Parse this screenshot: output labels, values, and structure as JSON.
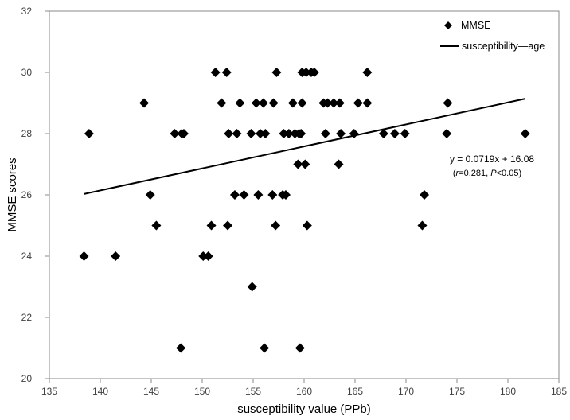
{
  "chart_data": {
    "type": "scatter",
    "title": "",
    "xlabel": "susceptibility value (PPb)",
    "ylabel": "MMSE scores",
    "xlim": [
      135,
      185
    ],
    "ylim": [
      20,
      32
    ],
    "xticks": [
      135,
      140,
      145,
      150,
      155,
      160,
      165,
      170,
      175,
      180,
      185
    ],
    "yticks": [
      20,
      22,
      24,
      26,
      28,
      30,
      32
    ],
    "grid": false,
    "legend_position": "top-right",
    "series": [
      {
        "name": "MMSE",
        "marker": "diamond",
        "color": "#000000",
        "points": [
          [
            138.4,
            24
          ],
          [
            138.9,
            28
          ],
          [
            141.5,
            24
          ],
          [
            144.3,
            29
          ],
          [
            144.9,
            26
          ],
          [
            145.5,
            25
          ],
          [
            147.3,
            28
          ],
          [
            147.9,
            21
          ],
          [
            148.0,
            28
          ],
          [
            148.2,
            28
          ],
          [
            150.1,
            24
          ],
          [
            150.6,
            24
          ],
          [
            150.9,
            25
          ],
          [
            151.3,
            30
          ],
          [
            151.9,
            29
          ],
          [
            152.4,
            30
          ],
          [
            152.5,
            25
          ],
          [
            152.6,
            28
          ],
          [
            153.2,
            26
          ],
          [
            153.4,
            28
          ],
          [
            153.7,
            29
          ],
          [
            154.1,
            26
          ],
          [
            154.8,
            28
          ],
          [
            154.9,
            23
          ],
          [
            155.3,
            29
          ],
          [
            155.5,
            26
          ],
          [
            155.7,
            28
          ],
          [
            156.0,
            29
          ],
          [
            156.1,
            21
          ],
          [
            156.2,
            28
          ],
          [
            156.9,
            26
          ],
          [
            157.0,
            29
          ],
          [
            157.2,
            25
          ],
          [
            157.3,
            30
          ],
          [
            157.9,
            26
          ],
          [
            158.0,
            28
          ],
          [
            158.2,
            26
          ],
          [
            158.5,
            28
          ],
          [
            158.9,
            29
          ],
          [
            159.1,
            28
          ],
          [
            159.4,
            27
          ],
          [
            159.5,
            28
          ],
          [
            159.6,
            21
          ],
          [
            159.7,
            28
          ],
          [
            159.8,
            30
          ],
          [
            159.8,
            29
          ],
          [
            160.1,
            27
          ],
          [
            160.2,
            30
          ],
          [
            160.3,
            25
          ],
          [
            160.7,
            30
          ],
          [
            161.0,
            30
          ],
          [
            161.9,
            29
          ],
          [
            162.1,
            28
          ],
          [
            162.3,
            29
          ],
          [
            162.9,
            29
          ],
          [
            163.4,
            27
          ],
          [
            163.6,
            28
          ],
          [
            163.5,
            29
          ],
          [
            164.9,
            28
          ],
          [
            165.3,
            29
          ],
          [
            166.2,
            30
          ],
          [
            166.2,
            29
          ],
          [
            167.8,
            28
          ],
          [
            168.9,
            28
          ],
          [
            169.9,
            28
          ],
          [
            171.6,
            25
          ],
          [
            171.8,
            26
          ],
          [
            174.0,
            28
          ],
          [
            174.1,
            29
          ],
          [
            181.7,
            28
          ]
        ]
      },
      {
        "name": "susceptibility—age",
        "kind": "line",
        "color": "#000000",
        "points": [
          [
            138.4,
            26.03
          ],
          [
            181.7,
            29.14
          ]
        ]
      }
    ],
    "annotations": {
      "equation": "y = 0.0719x + 16.08",
      "stats_open": "(",
      "stats_r": "r",
      "stats_r_value": "=0.281, ",
      "stats_p": "P",
      "stats_p_value": "<0.05)"
    }
  }
}
